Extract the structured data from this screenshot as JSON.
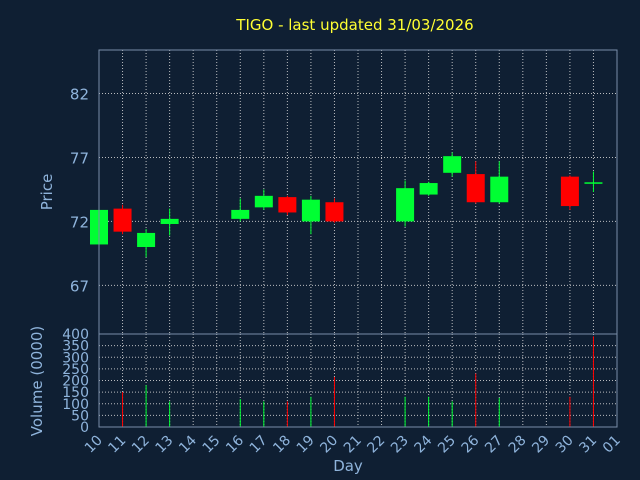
{
  "chart_data": [
    {
      "type": "candlestick",
      "title": "TIGO - last updated 31/03/2026",
      "ylabel": "Price",
      "ylim": [
        63.2,
        85.4
      ],
      "yticks": [
        "67",
        "72",
        "77",
        "82"
      ],
      "grid": true,
      "up_color": "#00ff33",
      "down_color": "#ff0000",
      "candles": [
        {
          "day": "10",
          "open": 70.2,
          "close": 72.9,
          "high": 73.1,
          "low": 70.0
        },
        {
          "day": "11",
          "open": 73.0,
          "close": 71.2,
          "high": 73.3,
          "low": 71.0
        },
        {
          "day": "12",
          "open": 70.0,
          "close": 71.1,
          "high": 71.4,
          "low": 69.2
        },
        {
          "day": "13",
          "open": 71.8,
          "close": 72.2,
          "high": 73.0,
          "low": 70.9
        },
        {
          "day": "16",
          "open": 72.2,
          "close": 72.9,
          "high": 73.8,
          "low": 72.0
        },
        {
          "day": "17",
          "open": 73.1,
          "close": 74.0,
          "high": 74.5,
          "low": 72.9
        },
        {
          "day": "18",
          "open": 73.9,
          "close": 72.7,
          "high": 74.0,
          "low": 72.5
        },
        {
          "day": "19",
          "open": 72.0,
          "close": 73.7,
          "high": 74.0,
          "low": 71.0
        },
        {
          "day": "20",
          "open": 73.5,
          "close": 72.0,
          "high": 73.8,
          "low": 71.9
        },
        {
          "day": "23",
          "open": 72.0,
          "close": 74.6,
          "high": 75.2,
          "low": 71.6
        },
        {
          "day": "24",
          "open": 74.1,
          "close": 75.0,
          "high": 75.1,
          "low": 74.0
        },
        {
          "day": "25",
          "open": 75.8,
          "close": 77.1,
          "high": 77.4,
          "low": 75.5
        },
        {
          "day": "26",
          "open": 75.7,
          "close": 73.5,
          "high": 76.7,
          "low": 73.4
        },
        {
          "day": "27",
          "open": 73.5,
          "close": 75.5,
          "high": 76.7,
          "low": 73.4
        },
        {
          "day": "30",
          "open": 75.5,
          "close": 73.2,
          "high": 75.6,
          "low": 72.9
        },
        {
          "day": "31",
          "open": 75.0,
          "close": 75.0,
          "high": 75.9,
          "low": 74.3
        }
      ]
    },
    {
      "type": "bar",
      "xlabel": "Day",
      "ylabel": "Volume (0000)",
      "ylim": [
        0,
        400
      ],
      "yticks": [
        "0",
        "50",
        "100",
        "150",
        "200",
        "250",
        "300",
        "350",
        "400"
      ],
      "categories": [
        "10",
        "11",
        "12",
        "13",
        "14",
        "15",
        "16",
        "17",
        "18",
        "19",
        "20",
        "21",
        "22",
        "23",
        "24",
        "25",
        "26",
        "27",
        "28",
        "29",
        "30",
        "31",
        "01"
      ],
      "grid": true,
      "bars": [
        {
          "day": "10",
          "value": 120,
          "color": "#00ff33"
        },
        {
          "day": "11",
          "value": 150,
          "color": "#ff0000"
        },
        {
          "day": "12",
          "value": 180,
          "color": "#00ff33"
        },
        {
          "day": "13",
          "value": 110,
          "color": "#00ff33"
        },
        {
          "day": "16",
          "value": 120,
          "color": "#00ff33"
        },
        {
          "day": "17",
          "value": 110,
          "color": "#00ff33"
        },
        {
          "day": "18",
          "value": 110,
          "color": "#ff0000"
        },
        {
          "day": "19",
          "value": 130,
          "color": "#00ff33"
        },
        {
          "day": "20",
          "value": 215,
          "color": "#ff0000"
        },
        {
          "day": "23",
          "value": 130,
          "color": "#00ff33"
        },
        {
          "day": "24",
          "value": 130,
          "color": "#00ff33"
        },
        {
          "day": "25",
          "value": 110,
          "color": "#00ff33"
        },
        {
          "day": "26",
          "value": 230,
          "color": "#ff0000"
        },
        {
          "day": "27",
          "value": 125,
          "color": "#00ff33"
        },
        {
          "day": "30",
          "value": 130,
          "color": "#ff0000"
        },
        {
          "day": "31",
          "value": 390,
          "color": "#ff0000"
        }
      ]
    }
  ]
}
